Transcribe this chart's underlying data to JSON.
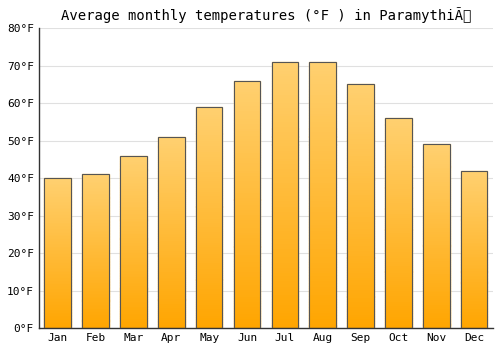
{
  "title": "Average monthly temperatures (°F ) in ParamythiÃ",
  "months": [
    "Jan",
    "Feb",
    "Mar",
    "Apr",
    "May",
    "Jun",
    "Jul",
    "Aug",
    "Sep",
    "Oct",
    "Nov",
    "Dec"
  ],
  "values": [
    40,
    41,
    46,
    51,
    59,
    66,
    71,
    71,
    65,
    56,
    49,
    42
  ],
  "bar_color_main": "#FFA500",
  "bar_color_light": "#FFD070",
  "background_color": "#FFFFFF",
  "plot_bg_color": "#FFFFFF",
  "ylim": [
    0,
    80
  ],
  "yticks": [
    0,
    10,
    20,
    30,
    40,
    50,
    60,
    70,
    80
  ],
  "ytick_labels": [
    "0°F",
    "10°F",
    "20°F",
    "30°F",
    "40°F",
    "50°F",
    "60°F",
    "70°F",
    "80°F"
  ],
  "grid_color": "#E0E0E0",
  "title_fontsize": 10,
  "tick_fontsize": 8,
  "bar_edge_color": "#555555",
  "bar_edge_width": 0.8,
  "bar_width": 0.7
}
